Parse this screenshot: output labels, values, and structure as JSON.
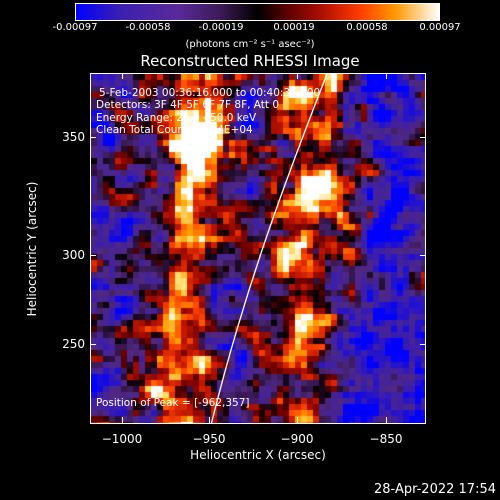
{
  "colorbar": {
    "ticks": [
      "-0.00097",
      "-0.00058",
      "-0.00019",
      "0.00019",
      "0.00058",
      "0.00097"
    ],
    "units": "(photons cm⁻² s⁻¹ asec⁻²)"
  },
  "title": "Reconstructed RHESSI Image",
  "info": {
    "time_range": "5-Feb-2003 00:36:16.000 to 00:40:36.000",
    "detectors": "Detectors: 3F 4F 5F 6F 7F 8F, Att 0",
    "energy": "Energy Range: 25.0 - 50.0 keV",
    "clean": "Clean     Total Counts: 1.84E+04",
    "peak": "Position of Peak = [-962,357]"
  },
  "axes": {
    "xlabel": "Heliocentric X (arcsec)",
    "ylabel": "Heliocentric Y (arcsec)",
    "xticks": [
      "−1000",
      "−950",
      "−900",
      "−850"
    ],
    "yticks": [
      "350",
      "300",
      "250"
    ],
    "xlim": [
      -1025,
      -825
    ],
    "ylim": [
      205,
      395
    ]
  },
  "timestamp": "28-Apr-2022 17:54"
}
